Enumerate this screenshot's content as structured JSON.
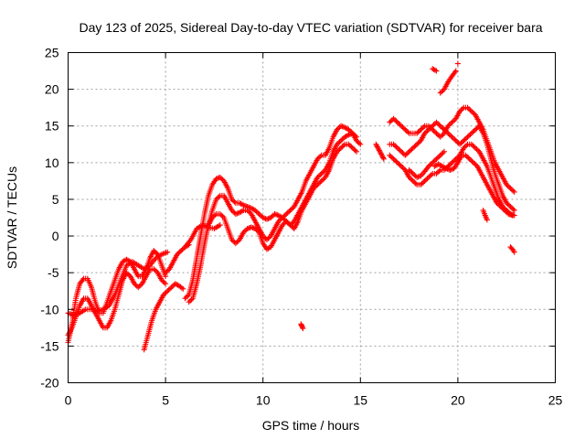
{
  "chart_data": {
    "type": "scatter",
    "title": "Day 123 of 2025, Sidereal Day-to-day VTEC variation (SDTVAR) for receiver bara",
    "xlabel": "GPS time / hours",
    "ylabel": "SDTVAR / TECUs",
    "xlim": [
      0,
      25
    ],
    "ylim": [
      -20,
      25
    ],
    "xticks": [
      0,
      5,
      10,
      15,
      20,
      25
    ],
    "yticks": [
      -20,
      -15,
      -10,
      -5,
      0,
      5,
      10,
      15,
      20,
      25
    ],
    "xtick_labels": [
      "0",
      "5",
      "10",
      "15",
      "20",
      "25"
    ],
    "ytick_labels": [
      "-20",
      "-15",
      "-10",
      "-5",
      "0",
      "5",
      "10",
      "15",
      "20",
      "25"
    ],
    "grid": true,
    "marker": "+",
    "color": "#ff0000",
    "series": [
      {
        "name": "track-1",
        "x": [
          0.0,
          0.2,
          0.4,
          0.6,
          0.8,
          1.0,
          1.2,
          1.4,
          1.6,
          1.8,
          2.0,
          2.2,
          2.4,
          2.6,
          2.8,
          3.0,
          3.2,
          3.4,
          3.6,
          3.8,
          4.0,
          4.2,
          4.4,
          4.6,
          4.8,
          5.0
        ],
        "y": [
          -14.5,
          -12.0,
          -8.5,
          -6.5,
          -5.8,
          -5.8,
          -7.0,
          -9.0,
          -10.5,
          -10.5,
          -9.0,
          -7.5,
          -6.0,
          -4.5,
          -3.5,
          -3.2,
          -3.5,
          -4.5,
          -5.5,
          -5.5,
          -4.5,
          -3.0,
          -2.0,
          -2.5,
          -4.0,
          -5.5
        ]
      },
      {
        "name": "track-2",
        "x": [
          0.0,
          0.2,
          0.4,
          0.6,
          0.8,
          1.0,
          1.2,
          1.4,
          1.6,
          1.8,
          2.0,
          2.2,
          2.4,
          2.6,
          2.8,
          3.0,
          3.2,
          3.4,
          3.6,
          3.8,
          4.0,
          4.2,
          4.4,
          4.6,
          4.8,
          5.0
        ],
        "y": [
          -13.5,
          -12.5,
          -11.0,
          -9.5,
          -8.5,
          -8.5,
          -9.5,
          -10.5,
          -11.5,
          -12.5,
          -12.5,
          -11.5,
          -10.0,
          -8.0,
          -6.0,
          -5.0,
          -5.5,
          -6.5,
          -7.0,
          -6.5,
          -5.5,
          -4.5,
          -4.5,
          -5.0,
          -6.0,
          -6.5
        ]
      },
      {
        "name": "track-3",
        "x": [
          0.0,
          0.3,
          0.6,
          0.9,
          1.2,
          1.5,
          1.8,
          2.1,
          2.4,
          2.7,
          3.0,
          3.3,
          3.6,
          3.9,
          4.2,
          4.5,
          4.8,
          5.1
        ],
        "y": [
          -10.5,
          -10.8,
          -10.5,
          -10.0,
          -10.0,
          -10.2,
          -10.0,
          -9.5,
          -8.0,
          -6.0,
          -4.0,
          -3.5,
          -4.0,
          -4.5,
          -4.0,
          -3.0,
          -2.5,
          -2.2
        ]
      },
      {
        "name": "track-4",
        "x": [
          3.9,
          4.1,
          4.3,
          4.5,
          4.7,
          4.9,
          5.1,
          5.3,
          5.5,
          5.7,
          5.9
        ],
        "y": [
          -15.5,
          -13.5,
          -11.5,
          -10.0,
          -9.0,
          -8.0,
          -7.5,
          -7.0,
          -6.5,
          -6.8,
          -7.2
        ]
      },
      {
        "name": "track-5",
        "x": [
          6.0,
          6.2,
          6.4,
          6.6,
          6.8,
          7.0,
          7.2,
          7.4,
          7.6,
          7.8,
          8.0,
          8.2,
          8.4,
          8.6,
          8.8,
          9.0,
          9.2,
          9.4,
          9.6,
          9.8,
          10.0,
          10.2,
          10.4,
          10.6,
          10.8,
          11.0,
          11.2,
          11.4,
          11.6,
          11.8,
          12.0,
          12.2,
          12.4,
          12.6,
          12.8,
          13.0,
          13.2,
          13.4,
          13.6,
          13.8,
          14.0,
          14.2,
          14.4,
          14.6,
          14.8,
          15.0
        ],
        "y": [
          -8.5,
          -8.0,
          -6.0,
          -3.0,
          0.0,
          3.0,
          5.5,
          7.0,
          7.8,
          8.0,
          7.5,
          6.5,
          5.0,
          4.5,
          4.5,
          4.2,
          4.0,
          3.8,
          3.5,
          3.0,
          2.5,
          2.3,
          2.5,
          3.0,
          2.8,
          2.5,
          3.0,
          3.5,
          4.0,
          5.0,
          6.0,
          7.5,
          8.5,
          9.5,
          10.5,
          11.0,
          11.0,
          12.0,
          13.5,
          14.5,
          15.0,
          14.8,
          14.5,
          14.0,
          13.0,
          12.5
        ]
      },
      {
        "name": "track-6",
        "x": [
          6.2,
          6.4,
          6.6,
          6.8,
          7.0,
          7.2,
          7.4,
          7.6,
          7.8,
          8.0,
          8.2,
          8.4,
          8.6,
          8.8,
          9.0,
          9.2,
          9.4,
          9.6,
          9.8,
          10.0,
          10.2,
          10.4,
          10.6,
          10.8,
          11.0,
          11.2,
          11.4,
          11.6,
          11.8,
          12.0,
          12.2,
          12.4,
          12.6,
          12.8,
          13.0,
          13.2,
          13.4,
          13.6,
          13.8,
          14.0,
          14.2,
          14.4,
          14.6,
          14.8
        ],
        "y": [
          -9.0,
          -8.5,
          -6.5,
          -4.0,
          -1.0,
          1.5,
          3.5,
          5.0,
          5.5,
          5.5,
          4.5,
          3.5,
          3.0,
          3.2,
          3.5,
          3.5,
          3.0,
          2.0,
          1.0,
          0.0,
          -0.5,
          0.0,
          1.0,
          2.0,
          2.5,
          2.0,
          1.5,
          2.0,
          3.0,
          4.0,
          5.0,
          6.0,
          7.0,
          8.0,
          8.5,
          9.0,
          10.0,
          11.5,
          12.5,
          13.0,
          13.5,
          13.8,
          14.0,
          13.5
        ]
      },
      {
        "name": "track-7",
        "x": [
          7.2,
          7.4,
          7.6,
          7.8,
          8.0,
          8.2,
          8.4,
          8.6,
          8.8,
          9.0,
          9.2,
          9.4,
          9.6,
          9.8,
          10.0,
          10.2,
          10.4,
          10.6,
          10.8,
          11.0,
          11.2,
          11.4,
          11.6,
          11.8,
          12.0,
          12.2,
          12.4,
          12.6,
          12.8,
          13.0,
          13.2,
          13.4,
          13.6,
          13.8,
          14.0,
          14.2,
          14.4,
          14.6,
          14.8
        ],
        "y": [
          1.5,
          2.5,
          3.0,
          3.0,
          2.5,
          1.0,
          -0.5,
          -1.0,
          -0.5,
          0.5,
          1.0,
          1.2,
          1.0,
          0.5,
          -1.0,
          -1.8,
          -1.5,
          -0.5,
          0.5,
          1.5,
          2.0,
          1.5,
          1.0,
          2.0,
          3.5,
          4.5,
          5.5,
          6.5,
          7.0,
          7.5,
          8.0,
          9.0,
          10.5,
          11.5,
          12.0,
          12.5,
          12.5,
          12.0,
          11.5
        ]
      },
      {
        "name": "track-8",
        "x": [
          6.0,
          6.3,
          6.6,
          6.9,
          7.2,
          7.5,
          7.8
        ],
        "y": [
          -1.5,
          -0.5,
          1.0,
          1.5,
          1.2,
          1.0,
          1.5
        ]
      },
      {
        "name": "track-9",
        "x": [
          5.0,
          5.2,
          5.4,
          5.6,
          5.8,
          6.0,
          6.2
        ],
        "y": [
          -5.0,
          -4.5,
          -3.5,
          -2.5,
          -2.0,
          -1.5,
          -1.2
        ]
      },
      {
        "name": "track-10",
        "x": [
          11.95,
          12.0,
          12.05
        ],
        "y": [
          -12.0,
          -12.3,
          -12.6
        ]
      },
      {
        "name": "track-11",
        "x": [
          16.5,
          16.7,
          16.9,
          17.1,
          17.3,
          17.5,
          17.7,
          17.9,
          18.1,
          18.3,
          18.5,
          18.7,
          18.9,
          19.1,
          19.3,
          19.5,
          19.7,
          19.9,
          20.1,
          20.3,
          20.5,
          20.7,
          20.9,
          21.1,
          21.3,
          21.5,
          21.7,
          21.9,
          22.1,
          22.3,
          22.5,
          22.7,
          22.9
        ],
        "y": [
          15.5,
          16.0,
          15.5,
          15.0,
          14.5,
          14.0,
          14.0,
          14.0,
          14.5,
          15.0,
          15.0,
          14.5,
          14.0,
          13.5,
          14.0,
          15.0,
          15.5,
          16.0,
          17.0,
          17.5,
          17.5,
          17.0,
          16.5,
          15.5,
          14.5,
          13.0,
          11.5,
          10.0,
          9.0,
          8.0,
          7.0,
          6.5,
          6.0
        ]
      },
      {
        "name": "track-12",
        "x": [
          16.5,
          16.7,
          16.9,
          17.1,
          17.3,
          17.5,
          17.7,
          17.9,
          18.1,
          18.3,
          18.5,
          18.7,
          18.9,
          19.1,
          19.3,
          19.5,
          19.7,
          19.9,
          20.1,
          20.3,
          20.5,
          20.7,
          20.9,
          21.1,
          21.3,
          21.5,
          21.7,
          21.9,
          22.1,
          22.3,
          22.5,
          22.7,
          22.9
        ],
        "y": [
          12.5,
          12.5,
          12.0,
          11.5,
          11.0,
          11.5,
          12.0,
          12.5,
          13.0,
          14.0,
          14.5,
          15.0,
          15.5,
          15.0,
          14.5,
          14.0,
          13.5,
          13.0,
          12.5,
          13.0,
          13.5,
          14.0,
          14.5,
          15.0,
          14.0,
          12.5,
          10.5,
          8.5,
          7.0,
          5.5,
          4.5,
          4.0,
          3.5
        ]
      },
      {
        "name": "track-13",
        "x": [
          16.5,
          16.7,
          16.9,
          17.1,
          17.3,
          17.5,
          17.7,
          17.9,
          18.1,
          18.3,
          18.5,
          18.7,
          18.9,
          19.1,
          19.3,
          19.5,
          19.7,
          19.9,
          20.1,
          20.3,
          20.5,
          20.7,
          20.9,
          21.1,
          21.3,
          21.5,
          21.7,
          21.9,
          22.1,
          22.3,
          22.5,
          22.7,
          22.9
        ],
        "y": [
          11.0,
          10.5,
          10.0,
          9.5,
          9.0,
          8.0,
          7.5,
          7.0,
          7.0,
          7.5,
          8.0,
          8.5,
          8.5,
          9.0,
          9.0,
          9.5,
          10.0,
          10.5,
          11.0,
          12.0,
          12.5,
          12.5,
          12.0,
          11.5,
          10.5,
          9.5,
          8.0,
          6.5,
          5.0,
          4.0,
          3.5,
          3.0,
          2.8
        ]
      },
      {
        "name": "track-14",
        "x": [
          18.8,
          19.0,
          19.2,
          19.4,
          19.6,
          19.8,
          20.0,
          20.2,
          20.4,
          20.6,
          20.8,
          21.0,
          21.2,
          21.4,
          21.6,
          21.8,
          22.0,
          22.2,
          22.4,
          22.6,
          22.8
        ],
        "y": [
          9.5,
          9.8,
          9.5,
          9.2,
          9.0,
          9.2,
          10.0,
          11.0,
          11.0,
          10.5,
          10.0,
          9.5,
          8.5,
          7.5,
          6.5,
          5.5,
          4.5,
          4.0,
          3.5,
          3.0,
          2.8
        ]
      },
      {
        "name": "track-15",
        "x": [
          17.5,
          17.7,
          17.9,
          18.1,
          18.3,
          18.5,
          18.7,
          18.9,
          19.1,
          19.3
        ],
        "y": [
          9.0,
          8.5,
          8.0,
          8.2,
          8.8,
          9.5,
          10.0,
          10.5,
          11.0,
          11.5
        ]
      },
      {
        "name": "track-16",
        "x": [
          15.8,
          15.9,
          16.0,
          16.1,
          16.2
        ],
        "y": [
          12.5,
          12.0,
          11.5,
          11.0,
          10.5
        ]
      },
      {
        "name": "track-17",
        "x": [
          18.7,
          18.9
        ],
        "y": [
          22.8,
          22.5
        ]
      },
      {
        "name": "track-18",
        "x": [
          19.1,
          19.3,
          19.5,
          19.7,
          19.9
        ],
        "y": [
          19.5,
          20.0,
          21.0,
          21.8,
          22.5
        ]
      },
      {
        "name": "track-19",
        "x": [
          20.0
        ],
        "y": [
          23.5
        ]
      },
      {
        "name": "track-20",
        "x": [
          21.3,
          21.4,
          21.5
        ],
        "y": [
          3.5,
          2.8,
          2.2
        ]
      },
      {
        "name": "track-21",
        "x": [
          22.7,
          22.8,
          22.9
        ],
        "y": [
          -1.5,
          -1.8,
          -2.2
        ]
      }
    ]
  }
}
